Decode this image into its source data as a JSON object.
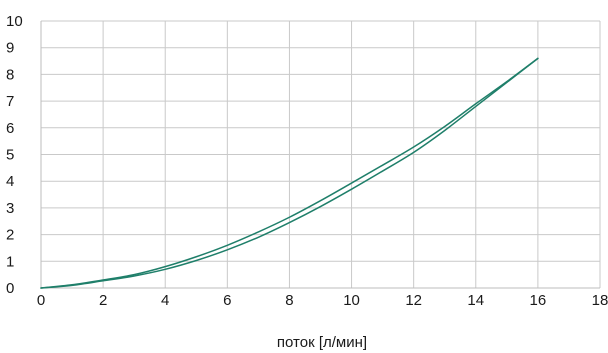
{
  "chart_data": {
    "type": "line",
    "title": "",
    "xlabel": "поток [л/мин]",
    "ylabel": "",
    "xlim": [
      0,
      18
    ],
    "ylim": [
      0,
      10
    ],
    "xticks": [
      0,
      2,
      4,
      6,
      8,
      10,
      12,
      14,
      16,
      18
    ],
    "yticks": [
      0,
      1,
      2,
      3,
      4,
      5,
      6,
      7,
      8,
      9,
      10
    ],
    "grid": true,
    "legend": "none",
    "series": [
      {
        "color": "#1f7f6a",
        "x": [
          0,
          1,
          2,
          3,
          4,
          5,
          6,
          7,
          8,
          9,
          10,
          11,
          12,
          13,
          14,
          15,
          16
        ],
        "y": [
          0,
          0.12,
          0.3,
          0.5,
          0.8,
          1.17,
          1.6,
          2.1,
          2.65,
          3.27,
          3.93,
          4.6,
          5.28,
          6.05,
          6.9,
          7.73,
          8.6
        ]
      },
      {
        "color": "#1f7f6a",
        "x": [
          0,
          1,
          2,
          3,
          4,
          5,
          6,
          7,
          8,
          9,
          10,
          11,
          12,
          13,
          14,
          15,
          16
        ],
        "y": [
          0,
          0.1,
          0.27,
          0.45,
          0.7,
          1.03,
          1.43,
          1.9,
          2.45,
          3.05,
          3.7,
          4.38,
          5.08,
          5.9,
          6.8,
          7.7,
          8.6
        ]
      }
    ]
  }
}
